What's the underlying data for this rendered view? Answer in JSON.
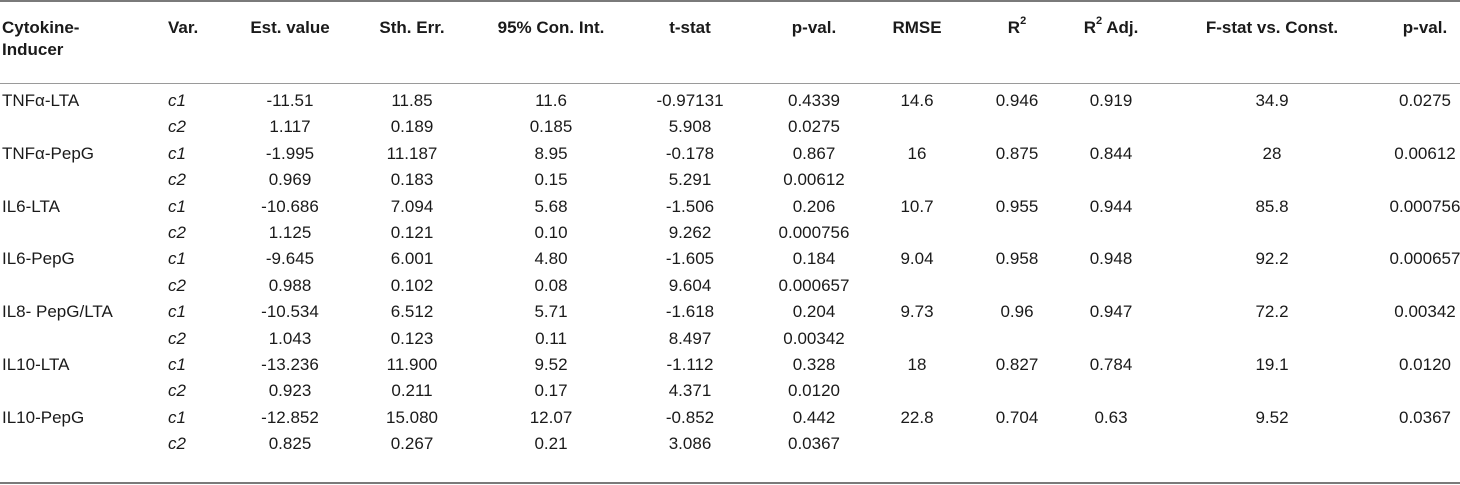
{
  "headers": {
    "inducer_line1": "Cytokine-",
    "inducer_line2": "Inducer",
    "var": "Var.",
    "est": "Est. value",
    "stderr": "Sth. Err.",
    "ci": "95% Con. Int.",
    "tstat": "t-stat",
    "pval": "p-val.",
    "rmse": "RMSE",
    "r2": "R",
    "r2_sup": "2",
    "r2adj_pre": "R",
    "r2adj_sup": "2",
    "r2adj_post": " Adj.",
    "fstat": "F-stat vs. Const.",
    "pval2": "p-val."
  },
  "groups": [
    {
      "inducer": "TNFα-LTA",
      "rmse": "14.6",
      "r2": "0.946",
      "r2adj": "0.919",
      "fstat": "34.9",
      "pval2": "0.0275",
      "rows": [
        {
          "var": "c1",
          "est": "-11.51",
          "stderr": "11.85",
          "ci": "11.6",
          "tstat": "-0.97131",
          "pval": "0.4339"
        },
        {
          "var": "c2",
          "est": "1.117",
          "stderr": "0.189",
          "ci": "0.185",
          "tstat": "5.908",
          "pval": "0.0275"
        }
      ]
    },
    {
      "inducer": "TNFα-PepG",
      "rmse": "16",
      "r2": "0.875",
      "r2adj": "0.844",
      "fstat": "28",
      "pval2": "0.00612",
      "rows": [
        {
          "var": "c1",
          "est": "-1.995",
          "stderr": "11.187",
          "ci": "8.95",
          "tstat": "-0.178",
          "pval": "0.867"
        },
        {
          "var": "c2",
          "est": "0.969",
          "stderr": "0.183",
          "ci": "0.15",
          "tstat": "5.291",
          "pval": "0.00612"
        }
      ]
    },
    {
      "inducer": "IL6-LTA",
      "rmse": "10.7",
      "r2": "0.955",
      "r2adj": "0.944",
      "fstat": "85.8",
      "pval2": "0.000756",
      "rows": [
        {
          "var": "c1",
          "est": "-10.686",
          "stderr": "7.094",
          "ci": "5.68",
          "tstat": "-1.506",
          "pval": "0.206"
        },
        {
          "var": "c2",
          "est": "1.125",
          "stderr": "0.121",
          "ci": "0.10",
          "tstat": "9.262",
          "pval": "0.000756"
        }
      ]
    },
    {
      "inducer": "IL6-PepG",
      "rmse": "9.04",
      "r2": "0.958",
      "r2adj": "0.948",
      "fstat": "92.2",
      "pval2": "0.000657",
      "rows": [
        {
          "var": "c1",
          "est": "-9.645",
          "stderr": "6.001",
          "ci": "4.80",
          "tstat": "-1.605",
          "pval": "0.184"
        },
        {
          "var": "c2",
          "est": "0.988",
          "stderr": "0.102",
          "ci": "0.08",
          "tstat": "9.604",
          "pval": "0.000657"
        }
      ]
    },
    {
      "inducer": "IL8- PepG/LTA",
      "rmse": "9.73",
      "r2": "0.96",
      "r2adj": "0.947",
      "fstat": "72.2",
      "pval2": "0.00342",
      "rows": [
        {
          "var": "c1",
          "est": "-10.534",
          "stderr": "6.512",
          "ci": "5.71",
          "tstat": "-1.618",
          "pval": "0.204"
        },
        {
          "var": "c2",
          "est": "1.043",
          "stderr": "0.123",
          "ci": "0.11",
          "tstat": "8.497",
          "pval": "0.00342"
        }
      ]
    },
    {
      "inducer": "IL10-LTA",
      "rmse": "18",
      "r2": "0.827",
      "r2adj": "0.784",
      "fstat": "19.1",
      "pval2": "0.0120",
      "rows": [
        {
          "var": "c1",
          "est": "-13.236",
          "stderr": "11.900",
          "ci": "9.52",
          "tstat": "-1.112",
          "pval": "0.328"
        },
        {
          "var": "c2",
          "est": "0.923",
          "stderr": "0.211",
          "ci": "0.17",
          "tstat": "4.371",
          "pval": "0.0120"
        }
      ]
    },
    {
      "inducer": "IL10-PepG",
      "rmse": "22.8",
      "r2": "0.704",
      "r2adj": "0.63",
      "fstat": "9.52",
      "pval2": "0.0367",
      "rows": [
        {
          "var": "c1",
          "est": "-12.852",
          "stderr": "15.080",
          "ci": "12.07",
          "tstat": "-0.852",
          "pval": "0.442"
        },
        {
          "var": "c2",
          "est": "0.825",
          "stderr": "0.267",
          "ci": "0.21",
          "tstat": "3.086",
          "pval": "0.0367"
        }
      ]
    }
  ]
}
